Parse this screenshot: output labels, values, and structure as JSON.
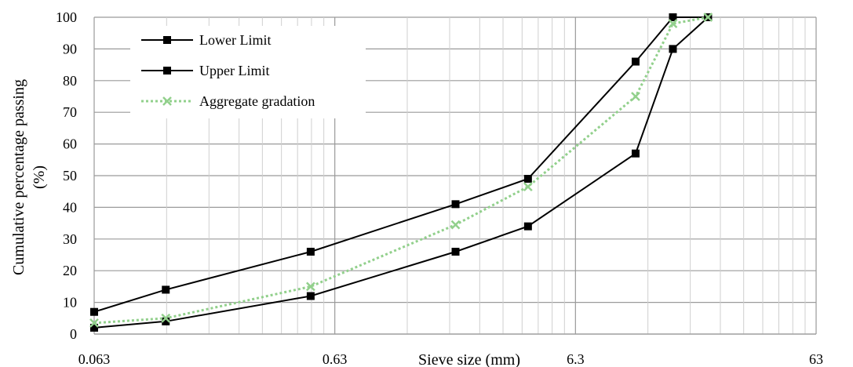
{
  "chart_data": {
    "type": "line",
    "xscale": "log",
    "xlim": [
      0.063,
      63
    ],
    "ylim": [
      0,
      100
    ],
    "x_ticks": [
      "0.063",
      "0.63",
      "6.3",
      "63"
    ],
    "y_ticks": [
      "0",
      "10",
      "20",
      "30",
      "40",
      "50",
      "60",
      "70",
      "80",
      "90",
      "100"
    ],
    "xlabel": "Sieve size (mm)",
    "ylabel_lines": [
      "Cumulative percentage passing",
      "(%)"
    ],
    "grid": true,
    "legend_position": "top-left",
    "series": [
      {
        "name": "Lower Limit",
        "color": "#000000",
        "marker": "square",
        "line": "solid",
        "x": [
          0.063,
          0.125,
          0.5,
          2,
          4,
          11.2,
          16,
          22.4
        ],
        "y": [
          2,
          4,
          12,
          26,
          34,
          57,
          90,
          100
        ]
      },
      {
        "name": "Upper Limit",
        "color": "#000000",
        "marker": "square",
        "line": "solid",
        "x": [
          0.063,
          0.125,
          0.5,
          2,
          4,
          11.2,
          16,
          22.4
        ],
        "y": [
          7,
          14,
          26,
          41,
          49,
          86,
          100,
          100
        ]
      },
      {
        "name": "Aggregate gradation",
        "color": "#92d08c",
        "marker": "x",
        "line": "dotted",
        "x": [
          0.063,
          0.125,
          0.5,
          2,
          4,
          11.2,
          16,
          22.4
        ],
        "y": [
          3.5,
          5,
          15,
          34.5,
          46.5,
          75,
          98,
          100
        ]
      }
    ]
  }
}
